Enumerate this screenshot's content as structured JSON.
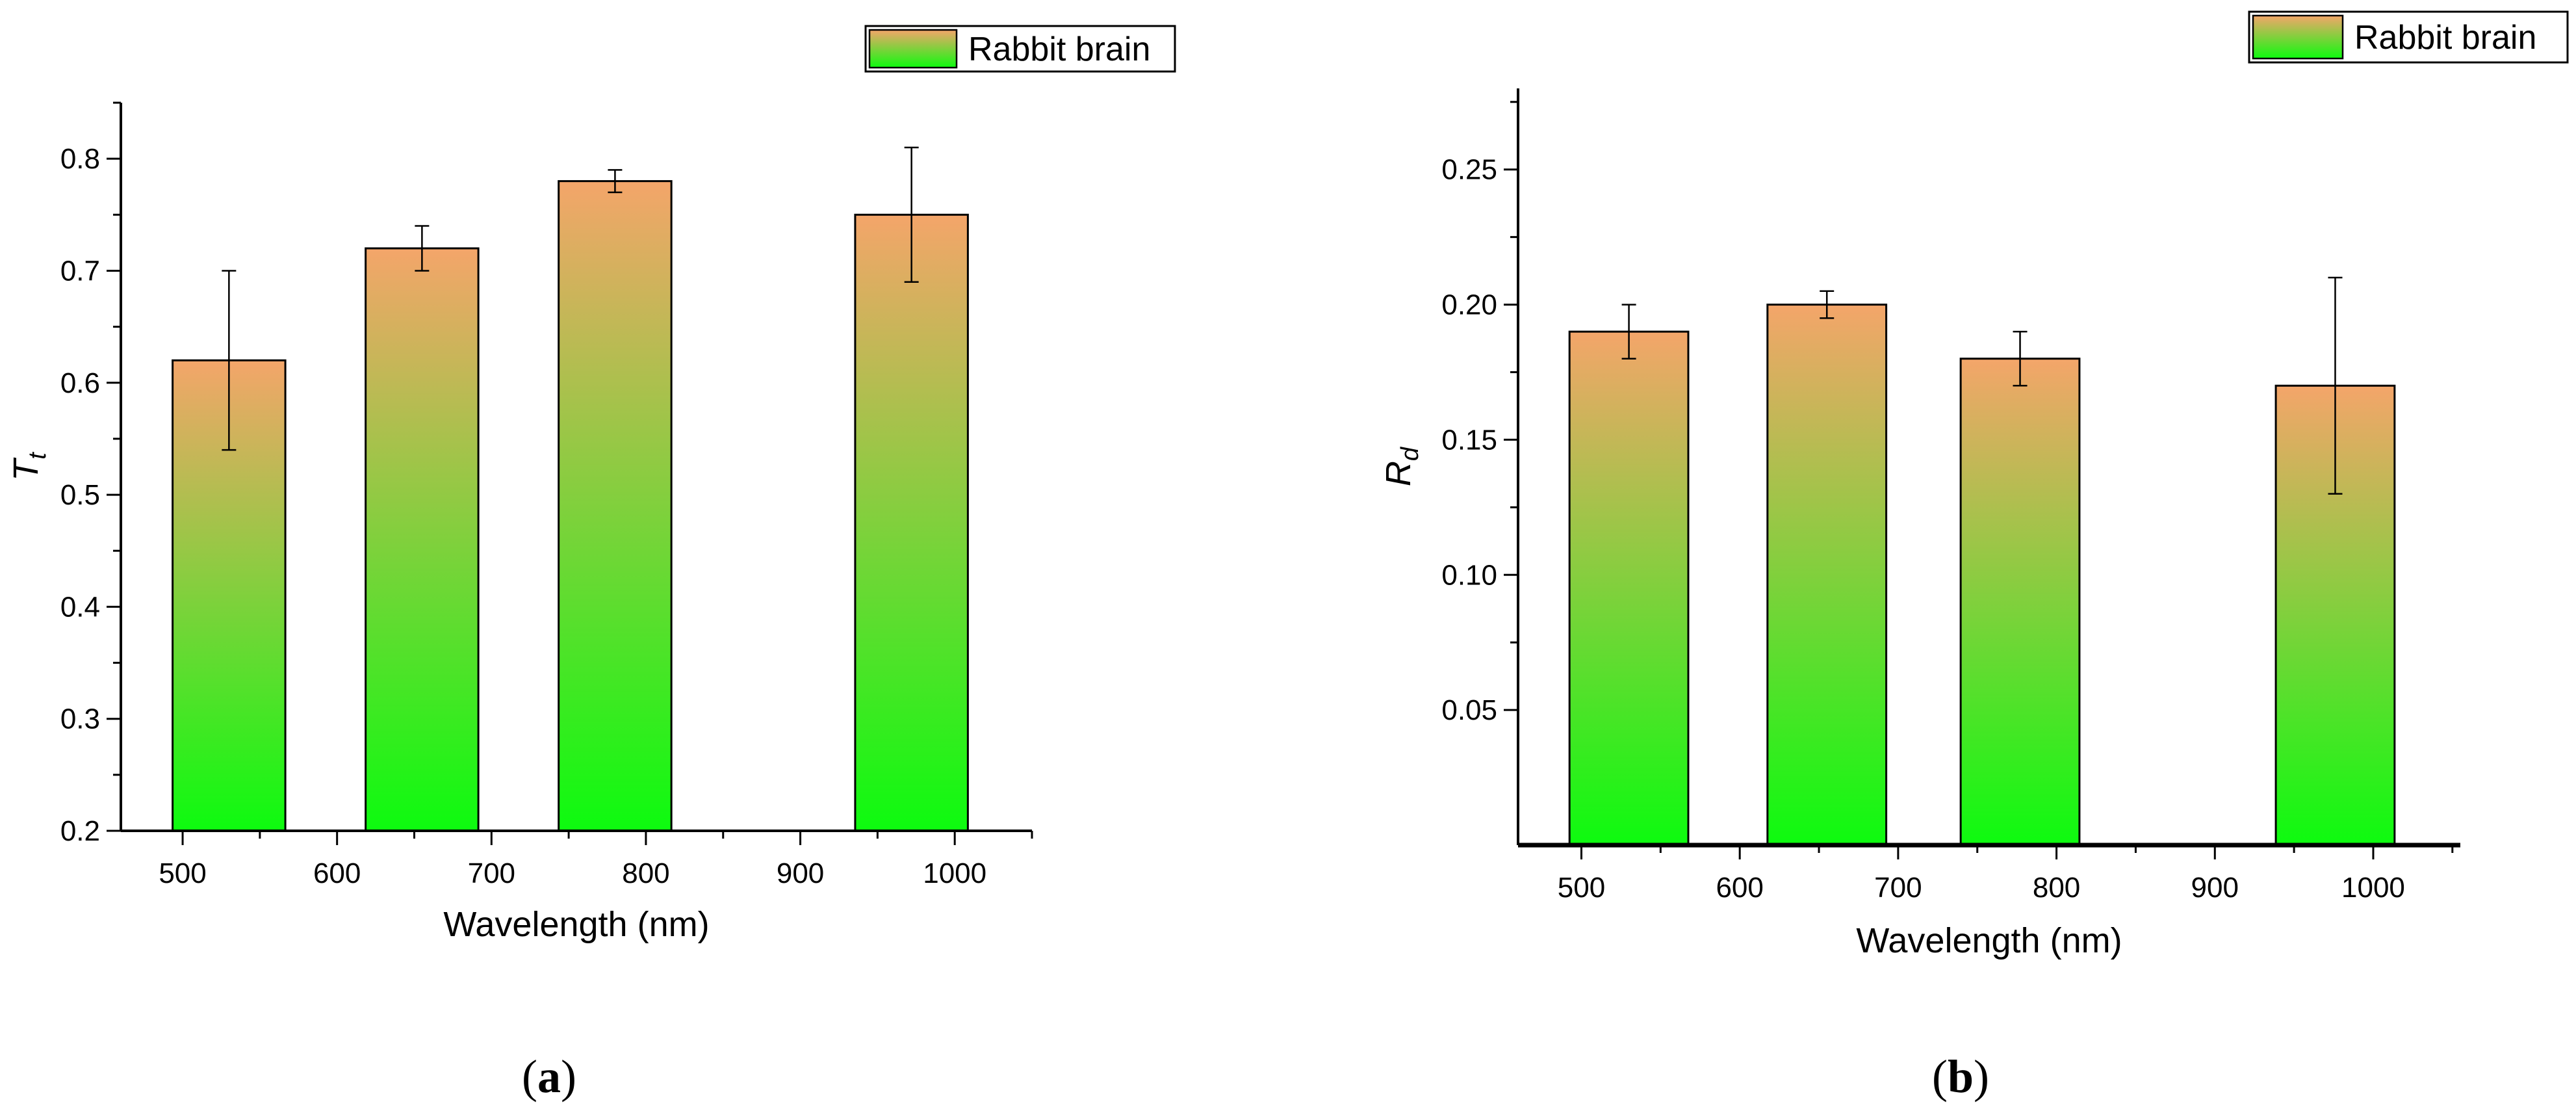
{
  "chart_data": [
    {
      "type": "bar",
      "panel": "(a)",
      "panel_letter": "a",
      "x": [
        530,
        655,
        780,
        972
      ],
      "values": [
        0.62,
        0.72,
        0.78,
        0.75
      ],
      "errors": [
        0.08,
        0.02,
        0.01,
        0.06
      ],
      "bar_width_nm": 73,
      "xlim": [
        460,
        1050
      ],
      "ylim": [
        0.2,
        0.85
      ],
      "xticks": [
        500,
        600,
        700,
        800,
        900,
        1000
      ],
      "xtick_labels": [
        "500",
        "600",
        "700",
        "800",
        "900",
        "1000"
      ],
      "yticks": [
        0.2,
        0.3,
        0.4,
        0.5,
        0.6,
        0.7,
        0.8
      ],
      "ytick_labels": [
        "0.2",
        "0.3",
        "0.4",
        "0.5",
        "0.6",
        "0.7",
        "0.8"
      ],
      "xlabel": "Wavelength (nm)",
      "ylabel_main": "T",
      "ylabel_sub": "t",
      "legend": [
        "Rabbit brain"
      ],
      "legend_position": "top-right"
    },
    {
      "type": "bar",
      "panel": "(b)",
      "panel_letter": "b",
      "x": [
        530,
        655,
        777,
        976
      ],
      "values": [
        0.19,
        0.2,
        0.18,
        0.17
      ],
      "errors": [
        0.01,
        0.005,
        0.01,
        0.04
      ],
      "bar_width_nm": 75,
      "xlim": [
        460,
        1055
      ],
      "ylim": [
        0,
        0.28
      ],
      "xticks": [
        500,
        600,
        700,
        800,
        900,
        1000
      ],
      "xtick_labels": [
        "500",
        "600",
        "700",
        "800",
        "900",
        "1000"
      ],
      "yticks": [
        0.05,
        0.1,
        0.15,
        0.2,
        0.25
      ],
      "ytick_labels": [
        "0.05",
        "0.10",
        "0.15",
        "0.20",
        "0.25"
      ],
      "xlabel": "Wavelength (nm)",
      "ylabel_main": "R",
      "ylabel_sub": "d",
      "legend": [
        "Rabbit brain"
      ],
      "legend_position": "top-right"
    }
  ],
  "colors": {
    "bar_top": "#f4a56a",
    "bar_bottom": "#0dfb0f",
    "outline": "#000000"
  }
}
